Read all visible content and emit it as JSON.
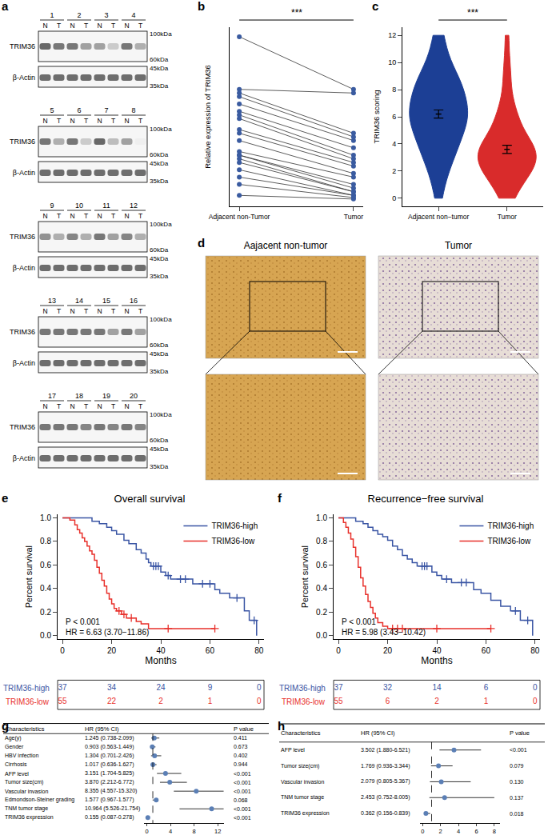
{
  "blots": {
    "panel": "a",
    "protein": "TRIM36",
    "control": "β-Actin",
    "lanes": [
      "N",
      "T"
    ],
    "groups": [
      [
        1,
        2,
        3,
        4
      ],
      [
        5,
        6,
        7,
        8
      ],
      [
        9,
        10,
        11,
        12
      ],
      [
        13,
        14,
        15,
        16
      ],
      [
        17,
        18,
        19,
        20
      ]
    ],
    "markers_top": [
      "100kDa",
      "60kDa"
    ],
    "markers_bottom": [
      "45kDa",
      "35kDa"
    ],
    "band_intensity": {
      "N": [
        1,
        0.9,
        0.6,
        0.9,
        0.9,
        0.9,
        1,
        0.6,
        0.7,
        0.8,
        0.9,
        0.8,
        0.9,
        0.9,
        0.9,
        0.9,
        0.9,
        0.9,
        0.9,
        0.9
      ],
      "T": [
        0.9,
        0.6,
        0.3,
        0.5,
        0.5,
        0.3,
        0.4,
        0.05,
        0.5,
        0.5,
        0.6,
        0.5,
        0.9,
        0.9,
        0.6,
        0.6,
        0.9,
        0.8,
        0.8,
        0.8
      ]
    }
  },
  "ihc": {
    "panel": "d",
    "left": "Aajacent non-tumor",
    "right": "Tumor"
  },
  "chart_data": [
    {
      "panel": "b",
      "type": "paired",
      "categories": [
        "Adjacent non-Tumor",
        "Tumor"
      ],
      "y_label": "Relative expression of TRIM36",
      "color": "#3a5ba0",
      "pairs": [
        [
          2.22,
          1.5
        ],
        [
          1.5,
          1.45
        ],
        [
          1.45,
          0.9
        ],
        [
          1.4,
          0.85
        ],
        [
          1.3,
          0.8
        ],
        [
          1.2,
          0.7
        ],
        [
          1.15,
          0.6
        ],
        [
          1.1,
          0.55
        ],
        [
          0.95,
          0.5
        ],
        [
          0.9,
          0.45
        ],
        [
          0.8,
          0.35
        ],
        [
          0.65,
          0.3
        ],
        [
          0.6,
          0.2
        ],
        [
          0.6,
          0.15
        ],
        [
          0.55,
          0.1
        ],
        [
          0.5,
          0.1
        ],
        [
          0.4,
          0.05
        ],
        [
          0.3,
          0.05
        ],
        [
          0.2,
          0.02
        ],
        [
          0.05,
          0.0
        ]
      ],
      "ylim": [
        -0.1,
        2.35
      ],
      "tick_labels": "x",
      "annotation": "***"
    },
    {
      "panel": "c",
      "type": "violin",
      "categories": [
        "Adjacent non−tumor",
        "Tumor"
      ],
      "y_label": "TRIM36 scoring",
      "colors": [
        "#1c3f95",
        "#d92b2b"
      ],
      "values": [
        [
          0,
          1,
          2,
          2,
          3,
          3,
          3,
          4,
          4,
          4,
          4,
          4,
          4,
          5,
          5,
          6,
          6,
          6,
          6,
          6,
          6,
          6,
          6,
          6,
          6,
          6,
          6,
          7,
          7,
          8,
          8,
          8,
          8,
          8,
          8,
          8,
          8,
          9,
          9,
          9,
          9,
          10,
          10,
          11,
          12,
          12
        ],
        [
          0,
          0,
          1,
          1,
          1,
          2,
          2,
          2,
          2,
          2,
          2,
          2,
          3,
          3,
          3,
          3,
          3,
          3,
          3,
          3,
          3,
          4,
          4,
          4,
          4,
          4,
          4,
          4,
          4,
          5,
          5,
          6,
          6,
          6,
          6,
          7,
          8,
          9,
          10,
          12
        ]
      ],
      "mean": [
        6.2,
        3.6
      ],
      "se": [
        0.3,
        0.3
      ],
      "ylim": [
        -0.6,
        12.6
      ],
      "yticks": [
        0,
        2,
        4,
        6,
        8,
        10,
        12
      ],
      "annotation": "***"
    },
    {
      "panel": "e",
      "type": "survival",
      "title": "Overall survival",
      "x_label": "Months",
      "y_label": "Percent survival",
      "xlim": [
        -2,
        82
      ],
      "xticks": [
        0,
        20,
        40,
        60,
        80
      ],
      "ylim": [
        -0.03,
        1.03
      ],
      "yticks": [
        {
          "value": 0,
          "label": "0.0"
        },
        0.2,
        0.4,
        0.6,
        0.8,
        {
          "value": 1,
          "label": "1.0"
        }
      ],
      "legend": "top right",
      "annotations": [
        "P < 0.001",
        "HR = 6.63 (3.70−11.86)"
      ],
      "risk_x": [
        0,
        20,
        40,
        60,
        80
      ],
      "series": [
        {
          "name": "TRIM36-high",
          "color": "#3a55a4",
          "x": [
            0,
            12,
            15,
            18,
            20,
            22,
            25,
            27,
            30,
            32,
            34,
            35,
            36,
            40,
            42,
            44,
            53,
            62,
            64,
            68,
            74,
            76,
            79
          ],
          "values": [
            1,
            0.97,
            0.95,
            0.92,
            0.89,
            0.86,
            0.81,
            0.78,
            0.73,
            0.7,
            0.65,
            0.62,
            0.59,
            0.54,
            0.51,
            0.48,
            0.44,
            0.39,
            0.36,
            0.32,
            0.21,
            0.13,
            0.0
          ],
          "censored": {
            "x": [
              37,
              38,
              39,
              43,
              48,
              50,
              57,
              60,
              71,
              78
            ],
            "values": [
              0.59,
              0.59,
              0.59,
              0.51,
              0.48,
              0.48,
              0.44,
              0.44,
              0.32,
              0.13
            ]
          },
          "at_risk": [
            37,
            34,
            24,
            9,
            0
          ]
        },
        {
          "name": "TRIM36-low",
          "color": "#e8302b",
          "x": [
            0,
            3,
            5,
            6,
            7,
            8,
            9,
            10,
            11,
            12,
            13,
            14,
            15,
            16,
            17,
            18,
            19,
            20,
            21,
            22,
            24,
            26,
            30,
            32,
            35,
            62
          ],
          "values": [
            1,
            0.98,
            0.94,
            0.9,
            0.87,
            0.83,
            0.8,
            0.76,
            0.72,
            0.69,
            0.64,
            0.58,
            0.53,
            0.47,
            0.42,
            0.36,
            0.31,
            0.27,
            0.23,
            0.21,
            0.18,
            0.15,
            0.12,
            0.1,
            0.06,
            0.06
          ],
          "censored": {
            "x": [
              23,
              25,
              28,
              43,
              62
            ],
            "values": [
              0.21,
              0.18,
              0.15,
              0.06,
              0.06
            ]
          },
          "at_risk": [
            55,
            22,
            2,
            1,
            0
          ]
        }
      ]
    },
    {
      "panel": "f",
      "type": "survival",
      "title": "Recurrence−free survival",
      "x_label": "Months",
      "y_label": "Percent survival",
      "xlim": [
        -2,
        82
      ],
      "xticks": [
        0,
        20,
        40,
        60,
        80
      ],
      "ylim": [
        -0.03,
        1.03
      ],
      "yticks": [
        {
          "value": 0,
          "label": "0.0"
        },
        0.2,
        0.4,
        0.6,
        0.8,
        {
          "value": 1,
          "label": "1.0"
        }
      ],
      "legend": "top right",
      "annotations": [
        "P < 0.001",
        "HR = 5.98 (3.43−10.42)"
      ],
      "risk_x": [
        0,
        20,
        40,
        60,
        80
      ],
      "series": [
        {
          "name": "TRIM36-high",
          "color": "#3a55a4",
          "x": [
            0,
            7,
            10,
            12,
            14,
            16,
            18,
            20,
            22,
            24,
            26,
            28,
            30,
            32,
            38,
            40,
            42,
            46,
            55,
            58,
            62,
            66,
            70,
            74,
            79
          ],
          "values": [
            1,
            0.97,
            0.95,
            0.92,
            0.89,
            0.86,
            0.84,
            0.81,
            0.76,
            0.73,
            0.68,
            0.65,
            0.62,
            0.59,
            0.54,
            0.51,
            0.48,
            0.45,
            0.39,
            0.36,
            0.3,
            0.25,
            0.21,
            0.13,
            0.0
          ],
          "censored": {
            "x": [
              34,
              35,
              36,
              44,
              50,
              52,
              72,
              77
            ],
            "values": [
              0.59,
              0.59,
              0.59,
              0.48,
              0.45,
              0.45,
              0.21,
              0.13
            ]
          },
          "at_risk": [
            37,
            32,
            14,
            6,
            0
          ]
        },
        {
          "name": "TRIM36-low",
          "color": "#e8302b",
          "x": [
            0,
            2,
            3,
            4,
            5,
            6,
            7,
            8,
            9,
            10,
            11,
            12,
            13,
            14,
            15,
            16,
            18,
            20,
            62
          ],
          "values": [
            1,
            0.96,
            0.92,
            0.87,
            0.82,
            0.75,
            0.67,
            0.58,
            0.49,
            0.42,
            0.35,
            0.29,
            0.24,
            0.19,
            0.15,
            0.11,
            0.08,
            0.06,
            0.06
          ],
          "censored": {
            "x": [
              22,
              24,
              26,
              40,
              62
            ],
            "values": [
              0.06,
              0.06,
              0.06,
              0.06,
              0.06
            ]
          },
          "at_risk": [
            55,
            6,
            2,
            1,
            0
          ]
        }
      ]
    },
    {
      "panel": "g",
      "type": "forest",
      "headers": [
        "Characteristics",
        "HR (95% CI)",
        "P value"
      ],
      "color": "#5b7fb5",
      "reference": 1,
      "xlim": [
        -0.5,
        13
      ],
      "xticks": [
        0,
        4,
        8,
        12
      ],
      "rows": [
        {
          "name": "Age(y)",
          "hr": 1.245,
          "lo": 0.738,
          "hi": 2.099,
          "hr_label": "1.245 (0.738-2.099)",
          "p": "0.411"
        },
        {
          "name": "Gender",
          "hr": 0.903,
          "lo": 0.563,
          "hi": 1.449,
          "hr_label": "0.903 (0.563-1.449)",
          "p": "0.673"
        },
        {
          "name": "HBV infection",
          "hr": 1.304,
          "lo": 0.701,
          "hi": 2.426,
          "hr_label": "1.304 (0.701-2.426)",
          "p": "0.402"
        },
        {
          "name": "Cirrhosis",
          "hr": 1.017,
          "lo": 0.636,
          "hi": 1.627,
          "hr_label": "1.017 (0.636-1.627)",
          "p": "0.944"
        },
        {
          "name": "AFP level",
          "hr": 3.151,
          "lo": 1.704,
          "hi": 5.825,
          "hr_label": "3.151 (1.704-5.825)",
          "p": "<0.001"
        },
        {
          "name": "Tumor size(cm)",
          "hr": 3.87,
          "lo": 2.212,
          "hi": 6.772,
          "hr_label": "3.870 (2.212-6.772)",
          "p": "<0.001"
        },
        {
          "name": "Vascular invasion",
          "hr": 8.355,
          "lo": 4.557,
          "hi": 15.32,
          "hr_label": "8.355 (4.557-15.320)",
          "p": "<0.001"
        },
        {
          "name": "Edmondson-Steiner grading",
          "hr": 1.577,
          "lo": 0.967,
          "hi": 1.577,
          "hr_label": "1.577 (0.967-1.577)",
          "p": "0.068"
        },
        {
          "name": "TNM tumor stage",
          "hr": 10.964,
          "lo": 5.526,
          "hi": 21.754,
          "hr_label": "10.964 (5.526-21.754)",
          "p": "<0.001"
        },
        {
          "name": "TRIM36 expression",
          "hr": 0.155,
          "lo": 0.087,
          "hi": 0.278,
          "hr_label": "0.155 (0.087-0.278)",
          "p": "<0.001"
        }
      ]
    },
    {
      "panel": "h",
      "type": "forest",
      "headers": [
        "Characteristics",
        "HR (95% CI)",
        "P value"
      ],
      "color": "#5b7fb5",
      "reference": 1,
      "xlim": [
        -0.3,
        8.6
      ],
      "xticks": [
        0,
        2,
        4,
        6,
        8
      ],
      "rows": [
        {
          "name": "AFP level",
          "hr": 3.502,
          "lo": 1.88,
          "hi": 6.521,
          "hr_label": "3.502 (1.880-6.521)",
          "p": "<0.001"
        },
        {
          "name": "Tumor size(cm)",
          "hr": 1.769,
          "lo": 0.936,
          "hi": 3.344,
          "hr_label": "1.769 (0.936-3.344)",
          "p": "0.079"
        },
        {
          "name": "Vascular invasion",
          "hr": 2.079,
          "lo": 0.805,
          "hi": 5.367,
          "hr_label": "2.079 (0.805-5.367)",
          "p": "0.130"
        },
        {
          "name": "TNM tumor stage",
          "hr": 2.453,
          "lo": 0.752,
          "hi": 8.005,
          "hr_label": "2.453 (0.752-8.005)",
          "p": "0.137"
        },
        {
          "name": "TRIM36 expression",
          "hr": 0.362,
          "lo": 0.156,
          "hi": 0.839,
          "hr_label": "0.362 (0.156-0.839)",
          "p": "0.018"
        }
      ]
    }
  ]
}
